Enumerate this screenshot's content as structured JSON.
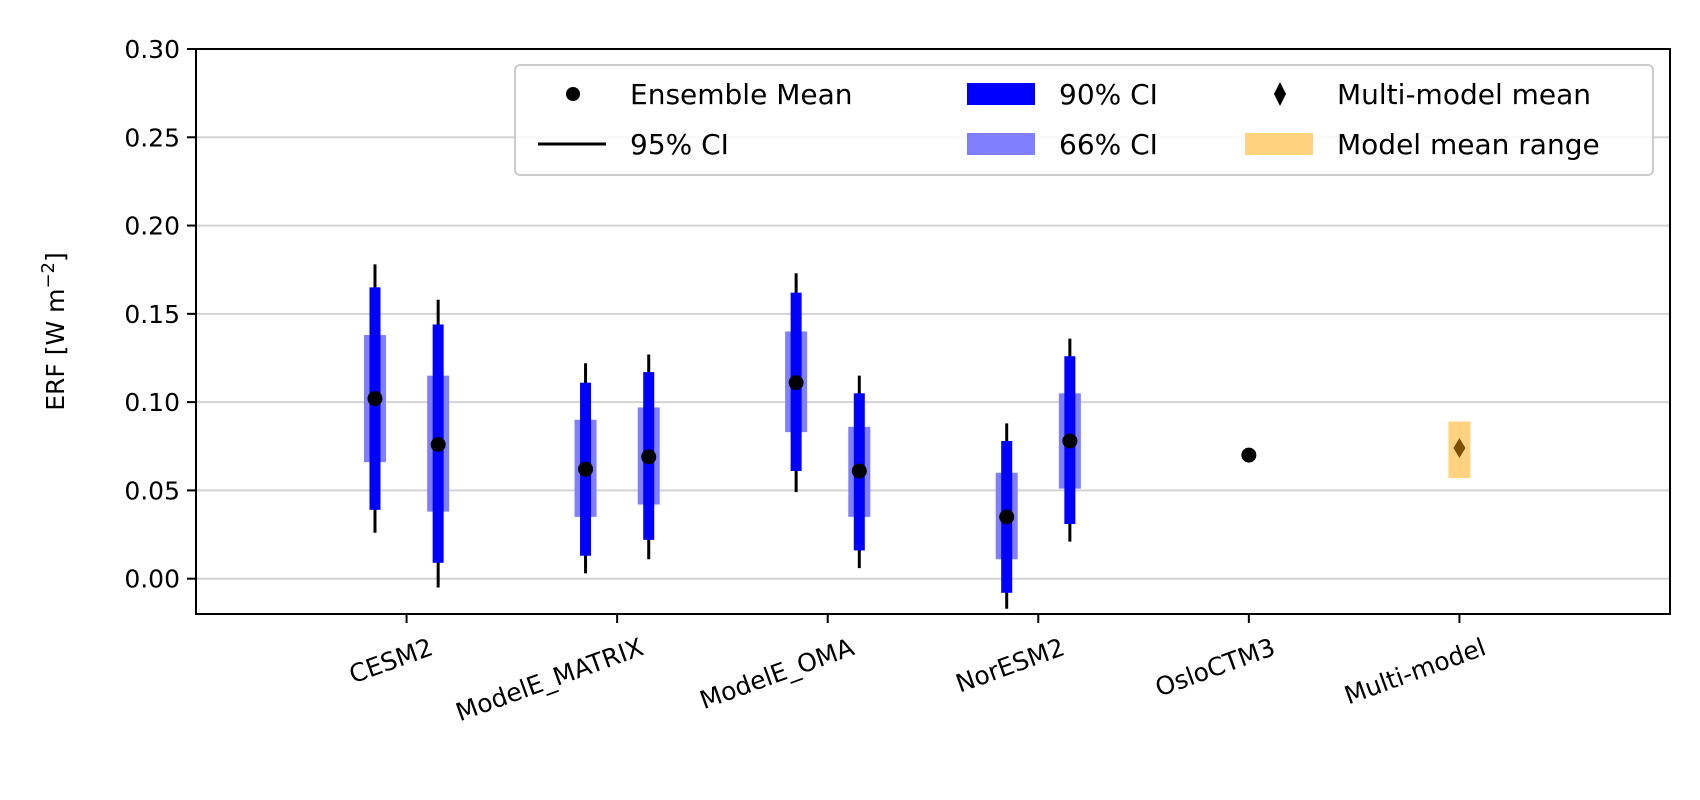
{
  "chart_data": {
    "type": "errorbar",
    "ylabel": "ERF [W m",
    "ylabel_sup": "−2",
    "ylabel_end": "]",
    "ylim": [
      -0.02,
      0.3
    ],
    "yticks": [
      {
        "value": 0.0,
        "label": "0.00"
      },
      {
        "value": 0.05,
        "label": "0.05"
      },
      {
        "value": 0.1,
        "label": "0.10"
      },
      {
        "value": 0.15,
        "label": "0.15"
      },
      {
        "value": 0.2,
        "label": "0.20"
      },
      {
        "value": 0.25,
        "label": "0.25"
      },
      {
        "value": 0.3,
        "label": "0.30"
      }
    ],
    "grid": "horizontal",
    "categories": [
      "CESM2",
      "ModelE_MATRIX",
      "ModelE_OMA",
      "NorESM2",
      "OsloCTM3",
      "Multi-model"
    ],
    "ensembles": [
      {
        "model": "CESM2",
        "offset": -0.15,
        "mean": 0.102,
        "ci95": [
          0.026,
          0.178
        ],
        "ci90": [
          0.039,
          0.165
        ],
        "ci66": [
          0.066,
          0.138
        ]
      },
      {
        "model": "CESM2",
        "offset": 0.15,
        "mean": 0.076,
        "ci95": [
          -0.005,
          0.158
        ],
        "ci90": [
          0.009,
          0.144
        ],
        "ci66": [
          0.038,
          0.115
        ]
      },
      {
        "model": "ModelE_MATRIX",
        "offset": -0.15,
        "mean": 0.062,
        "ci95": [
          0.003,
          0.122
        ],
        "ci90": [
          0.013,
          0.111
        ],
        "ci66": [
          0.035,
          0.09
        ]
      },
      {
        "model": "ModelE_MATRIX",
        "offset": 0.15,
        "mean": 0.069,
        "ci95": [
          0.011,
          0.127
        ],
        "ci90": [
          0.022,
          0.117
        ],
        "ci66": [
          0.042,
          0.097
        ]
      },
      {
        "model": "ModelE_OMA",
        "offset": -0.15,
        "mean": 0.111,
        "ci95": [
          0.049,
          0.173
        ],
        "ci90": [
          0.061,
          0.162
        ],
        "ci66": [
          0.083,
          0.14
        ]
      },
      {
        "model": "ModelE_OMA",
        "offset": 0.15,
        "mean": 0.061,
        "ci95": [
          0.006,
          0.115
        ],
        "ci90": [
          0.016,
          0.105
        ],
        "ci66": [
          0.035,
          0.086
        ]
      },
      {
        "model": "NorESM2",
        "offset": -0.15,
        "mean": 0.035,
        "ci95": [
          -0.017,
          0.088
        ],
        "ci90": [
          -0.008,
          0.078
        ],
        "ci66": [
          0.011,
          0.06
        ]
      },
      {
        "model": "NorESM2",
        "offset": 0.15,
        "mean": 0.078,
        "ci95": [
          0.021,
          0.136
        ],
        "ci90": [
          0.031,
          0.126
        ],
        "ci66": [
          0.051,
          0.105
        ]
      },
      {
        "model": "OsloCTM3",
        "offset": 0.0,
        "mean": 0.07,
        "ci95": null,
        "ci90": null,
        "ci66": null
      }
    ],
    "multi_model": {
      "model": "Multi-model",
      "mean": 0.074,
      "range": [
        0.057,
        0.089
      ]
    },
    "legend": {
      "placement": "top-right",
      "entries": [
        {
          "label": "Ensemble Mean",
          "marker": "dot"
        },
        {
          "label": "90% CI",
          "marker": "box-dark"
        },
        {
          "label": "Multi-model mean",
          "marker": "diamond"
        },
        {
          "label": "95% CI",
          "marker": "line"
        },
        {
          "label": "66% CI",
          "marker": "box-light"
        },
        {
          "label": "Model mean range",
          "marker": "box-orange"
        }
      ]
    },
    "colors": {
      "ci90": "#0000ff",
      "ci66": "#8080ff",
      "ci95": "#000000",
      "mean": "#000000",
      "range": "#ffd27f",
      "diamond": "#7f4f00",
      "grid": "#d3d3d3",
      "axis": "#000000"
    }
  }
}
